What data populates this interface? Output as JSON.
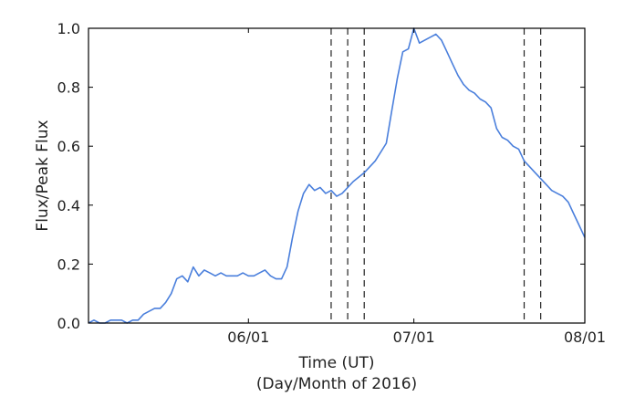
{
  "chart_data": {
    "type": "line",
    "xlabel": "Time (UT)",
    "xlabel_sub": "(Day/Month of 2016)",
    "ylabel": "Flux/Peak Flux",
    "xlim": [
      "2016-05-03",
      "2016-08-01"
    ],
    "ylim": [
      0.0,
      1.0
    ],
    "x_ticks": [
      {
        "date": "2016-06-01",
        "label": "06/01"
      },
      {
        "date": "2016-07-01",
        "label": "07/01"
      },
      {
        "date": "2016-08-01",
        "label": "08/01"
      }
    ],
    "y_ticks": [
      {
        "value": 0.0,
        "label": "0.0"
      },
      {
        "value": 0.2,
        "label": "0.2"
      },
      {
        "value": 0.4,
        "label": "0.4"
      },
      {
        "value": 0.6,
        "label": "0.6"
      },
      {
        "value": 0.8,
        "label": "0.8"
      },
      {
        "value": 1.0,
        "label": "1.0"
      }
    ],
    "grid": false,
    "line_color": "#4a7fdc",
    "vlines": [
      "2016-06-16",
      "2016-06-19",
      "2016-06-22",
      "2016-07-21",
      "2016-07-24"
    ],
    "vline_style": "dashed",
    "series": [
      {
        "x": [
          "2016-05-03",
          "2016-05-04",
          "2016-05-05",
          "2016-05-06",
          "2016-05-07",
          "2016-05-08",
          "2016-05-09",
          "2016-05-10",
          "2016-05-11",
          "2016-05-12",
          "2016-05-13",
          "2016-05-14",
          "2016-05-15",
          "2016-05-16",
          "2016-05-17",
          "2016-05-18",
          "2016-05-19",
          "2016-05-20",
          "2016-05-21",
          "2016-05-22",
          "2016-05-23",
          "2016-05-24",
          "2016-05-25",
          "2016-05-26",
          "2016-05-27",
          "2016-05-28",
          "2016-05-29",
          "2016-05-30",
          "2016-05-31",
          "2016-06-01",
          "2016-06-02",
          "2016-06-03",
          "2016-06-04",
          "2016-06-05",
          "2016-06-06",
          "2016-06-07",
          "2016-06-08",
          "2016-06-09",
          "2016-06-10",
          "2016-06-11",
          "2016-06-12",
          "2016-06-13",
          "2016-06-14",
          "2016-06-15",
          "2016-06-16",
          "2016-06-17",
          "2016-06-18",
          "2016-06-19",
          "2016-06-20",
          "2016-06-22",
          "2016-06-24",
          "2016-06-26",
          "2016-06-27",
          "2016-06-28",
          "2016-06-29",
          "2016-06-30",
          "2016-07-01",
          "2016-07-02",
          "2016-07-03",
          "2016-07-04",
          "2016-07-05",
          "2016-07-06",
          "2016-07-07",
          "2016-07-08",
          "2016-07-09",
          "2016-07-10",
          "2016-07-11",
          "2016-07-12",
          "2016-07-13",
          "2016-07-14",
          "2016-07-15",
          "2016-07-16",
          "2016-07-17",
          "2016-07-18",
          "2016-07-19",
          "2016-07-20",
          "2016-07-21",
          "2016-07-22",
          "2016-07-23",
          "2016-07-24",
          "2016-07-25",
          "2016-07-26",
          "2016-07-27",
          "2016-07-28",
          "2016-07-29",
          "2016-07-30",
          "2016-07-31",
          "2016-08-01"
        ],
        "y": [
          0.0,
          0.01,
          0.0,
          0.0,
          0.01,
          0.01,
          0.01,
          0.0,
          0.01,
          0.01,
          0.03,
          0.04,
          0.05,
          0.05,
          0.07,
          0.1,
          0.15,
          0.16,
          0.14,
          0.19,
          0.16,
          0.18,
          0.17,
          0.16,
          0.17,
          0.16,
          0.16,
          0.16,
          0.17,
          0.16,
          0.16,
          0.17,
          0.18,
          0.16,
          0.15,
          0.15,
          0.19,
          0.29,
          0.38,
          0.44,
          0.47,
          0.45,
          0.46,
          0.44,
          0.45,
          0.43,
          0.44,
          0.46,
          0.48,
          0.51,
          0.55,
          0.61,
          0.72,
          0.83,
          0.92,
          0.93,
          1.0,
          0.95,
          0.96,
          0.97,
          0.98,
          0.96,
          0.92,
          0.88,
          0.84,
          0.81,
          0.79,
          0.78,
          0.76,
          0.75,
          0.73,
          0.66,
          0.63,
          0.62,
          0.6,
          0.59,
          0.55,
          0.53,
          0.51,
          0.49,
          0.47,
          0.45,
          0.44,
          0.43,
          0.41,
          0.37,
          0.33,
          0.29
        ]
      }
    ]
  }
}
